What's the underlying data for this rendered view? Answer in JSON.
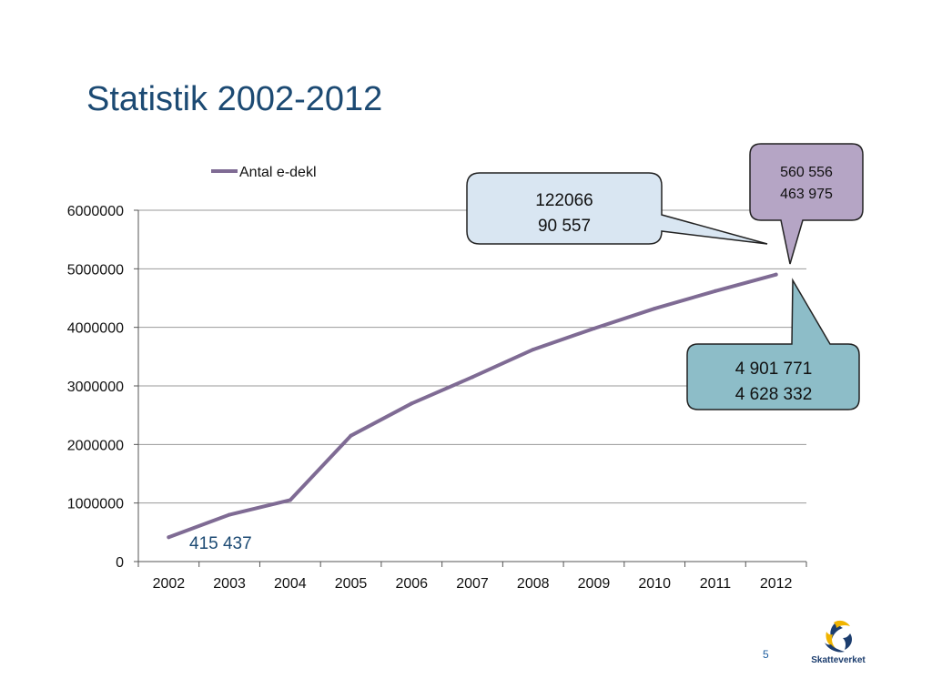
{
  "slide": {
    "title": "Statistik 2002-2012",
    "page_number": "5",
    "logo_text": "Skatteverket"
  },
  "colors": {
    "title": "#1c4a73",
    "series_line": "#7f6b94",
    "callout_light_blue": "#d9e6f2",
    "callout_purple": "#b5a5c5",
    "callout_teal": "#8dbdc8",
    "annotation_text": "#1c4a73"
  },
  "chart_data": {
    "type": "line",
    "title": "",
    "xlabel": "",
    "ylabel": "",
    "categories": [
      "2002",
      "2003",
      "2004",
      "2005",
      "2006",
      "2007",
      "2008",
      "2009",
      "2010",
      "2011",
      "2012"
    ],
    "y_ticks": [
      "0",
      "1000000",
      "2000000",
      "3000000",
      "4000000",
      "5000000",
      "6000000"
    ],
    "ylim": [
      0,
      6000000
    ],
    "grid": true,
    "legend": "top",
    "series": [
      {
        "name": "Antal e-dekl",
        "values": [
          415437,
          800000,
          1050000,
          2150000,
          2700000,
          3150000,
          3620000,
          3980000,
          4320000,
          4620000,
          4901771
        ]
      }
    ],
    "annotations": {
      "start_label": "415 437",
      "callout_light_blue": [
        "122066",
        "90 557"
      ],
      "callout_purple": [
        "560 556",
        "463 975"
      ],
      "callout_teal": [
        "4 901 771",
        "4 628 332"
      ]
    }
  }
}
